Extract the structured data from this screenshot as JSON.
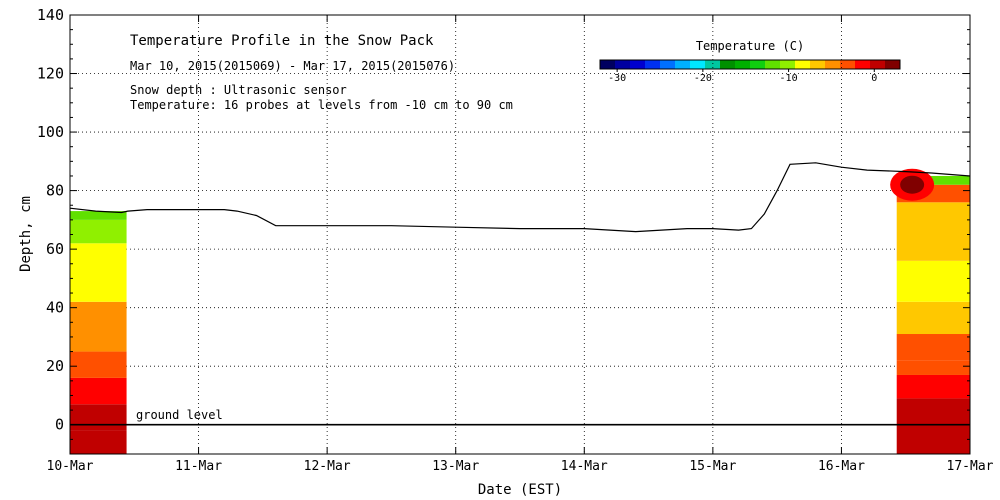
{
  "chart_data": {
    "type": "heatmap",
    "title": "Temperature Profile in the Snow Pack",
    "subtitle": "Mar 10, 2015(2015069) - Mar 17, 2015(2015076)",
    "annotations": {
      "line1": "Snow depth : Ultrasonic sensor",
      "line2": "Temperature: 16 probes at levels from -10 cm to 90 cm",
      "ground": "ground level"
    },
    "xlabel": "Date (EST)",
    "ylabel": "Depth, cm",
    "xlim": [
      0,
      7
    ],
    "ylim": [
      -10,
      140
    ],
    "x_ticks": [
      0,
      1,
      2,
      3,
      4,
      5,
      6,
      7
    ],
    "x_tick_labels": [
      "10-Mar",
      "11-Mar",
      "12-Mar",
      "13-Mar",
      "14-Mar",
      "15-Mar",
      "16-Mar",
      "17-Mar"
    ],
    "y_ticks": [
      0,
      20,
      40,
      60,
      80,
      100,
      120,
      140
    ],
    "y_tick_labels": [
      "0",
      "20",
      "40",
      "60",
      "80",
      "100",
      "120",
      "140"
    ],
    "grid": true,
    "colorbar": {
      "title": "Temperature (C)",
      "tick_values": [
        -30,
        -20,
        -10,
        0
      ],
      "tick_labels": [
        "-30",
        "-20",
        "-10",
        "0"
      ],
      "range": [
        -32,
        3
      ],
      "colors": [
        "#000060",
        "#0000a0",
        "#0000d0",
        "#0030f0",
        "#0070ff",
        "#00b0ff",
        "#00e8ff",
        "#00c8a0",
        "#009000",
        "#00b000",
        "#10d010",
        "#60e000",
        "#90f000",
        "#ffff00",
        "#ffc800",
        "#ff9000",
        "#ff5000",
        "#ff0000",
        "#c00000",
        "#800000"
      ]
    },
    "snow_depth": {
      "name": "Snow depth",
      "x": [
        0,
        0.2,
        0.4,
        0.45,
        0.6,
        0.8,
        1.0,
        1.2,
        1.3,
        1.45,
        1.6,
        1.8,
        2.0,
        2.5,
        3.0,
        3.5,
        4.0,
        4.4,
        4.6,
        4.8,
        5.0,
        5.2,
        5.3,
        5.4,
        5.5,
        5.6,
        5.8,
        6.0,
        6.2,
        6.5,
        6.7,
        7.0
      ],
      "y": [
        74,
        73,
        72.5,
        73,
        73.5,
        73.5,
        73.5,
        73.5,
        73,
        71.5,
        68,
        68,
        68,
        68,
        67.5,
        67,
        67,
        66,
        66.5,
        67,
        67,
        66.5,
        67,
        72,
        80,
        89,
        89.5,
        88,
        87,
        86.5,
        86,
        85
      ]
    },
    "ground_level": 0,
    "temperature_blocks": [
      {
        "name": "Mar 10 block",
        "x_range": [
          0,
          0.44
        ],
        "layers": [
          {
            "from": -10,
            "to": -2,
            "temperature": 1.0
          },
          {
            "from": -2,
            "to": 7,
            "temperature": -0.5
          },
          {
            "from": 7,
            "to": 16,
            "temperature": -2.0
          },
          {
            "from": 16,
            "to": 25,
            "temperature": -3.5
          },
          {
            "from": 25,
            "to": 42,
            "temperature": -5.5
          },
          {
            "from": 42,
            "to": 62,
            "temperature": -8.0
          },
          {
            "from": 62,
            "to": 70,
            "temperature": -9.5
          },
          {
            "from": 70,
            "to": 73,
            "temperature": -12.5
          }
        ]
      },
      {
        "name": "Mar 16-17 block",
        "x_range": [
          6.43,
          7
        ],
        "layers": [
          {
            "from": -10,
            "to": 9,
            "temperature": 0.0
          },
          {
            "from": 9,
            "to": 17,
            "temperature": -1.5
          },
          {
            "from": 17,
            "to": 22,
            "temperature": -2.5
          },
          {
            "from": 22,
            "to": 31,
            "temperature": -4.0
          },
          {
            "from": 31,
            "to": 42,
            "temperature": -6.0
          },
          {
            "from": 42,
            "to": 56,
            "temperature": -8.0
          },
          {
            "from": 56,
            "to": 76,
            "temperature": -7.0
          },
          {
            "from": 76,
            "to": 82,
            "temperature": -4.0
          },
          {
            "from": 82,
            "to": 85,
            "temperature": -12.5
          }
        ],
        "hotspot": {
          "x": 6.55,
          "y": 82,
          "temperature": 1.5
        }
      }
    ]
  }
}
